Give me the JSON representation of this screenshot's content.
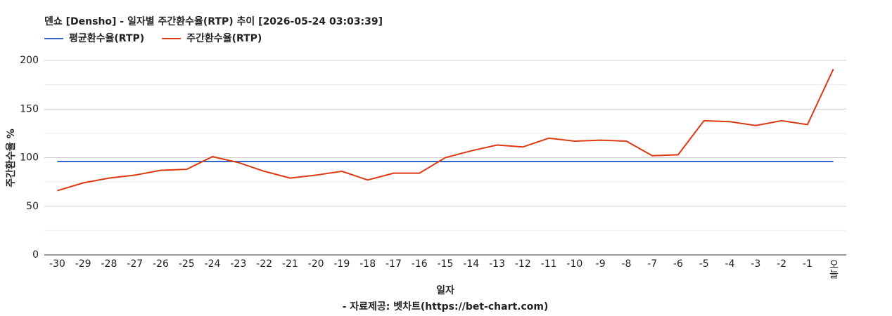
{
  "chart_data": {
    "type": "line",
    "title": "덴쇼 [Densho] - 일자별 주간환수율(RTP) 추이 [2026-05-24 03:03:39]",
    "x_label": "일자",
    "y_label": "주간환수율 %",
    "source": "- 자료제공: 벳차트(https://bet-chart.com)",
    "categories": [
      "-30",
      "-29",
      "-28",
      "-27",
      "-26",
      "-25",
      "-24",
      "-23",
      "-22",
      "-21",
      "-20",
      "-19",
      "-18",
      "-17",
      "-16",
      "-15",
      "-14",
      "-13",
      "-12",
      "-11",
      "-10",
      "-9",
      "-8",
      "-7",
      "-6",
      "-5",
      "-4",
      "-3",
      "-2",
      "-1",
      "오늘"
    ],
    "series": [
      {
        "name": "평균환수율(RTP)",
        "color": "#3366cc",
        "values": [
          96,
          96,
          96,
          96,
          96,
          96,
          96,
          96,
          96,
          96,
          96,
          96,
          96,
          96,
          96,
          96,
          96,
          96,
          96,
          96,
          96,
          96,
          96,
          96,
          96,
          96,
          96,
          96,
          96,
          96,
          96
        ]
      },
      {
        "name": "주간환수율(RTP)",
        "color": "#dc3912",
        "values": [
          66,
          74,
          79,
          82,
          87,
          88,
          101,
          95,
          86,
          79,
          82,
          86,
          77,
          84,
          84,
          100,
          107,
          113,
          111,
          120,
          117,
          118,
          117,
          102,
          103,
          138,
          137,
          133,
          138,
          134,
          191
        ]
      }
    ],
    "ylim": [
      0,
      200
    ],
    "yticks": [
      0,
      50,
      100,
      150,
      200
    ],
    "minor_yticks": [
      25,
      75,
      125,
      175
    ],
    "grid": true,
    "legend": "top-left"
  }
}
